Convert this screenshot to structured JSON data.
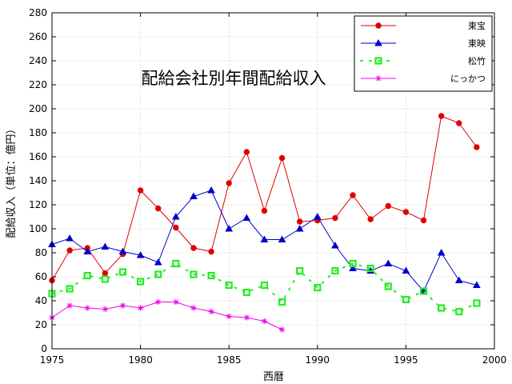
{
  "chart_data": {
    "type": "line",
    "title": "配給会社別年間配給収入",
    "xlabel": "西暦",
    "ylabel": "配給収入（単位：億円）",
    "xlim": [
      1975,
      2000
    ],
    "ylim": [
      0,
      280
    ],
    "xticks": [
      1975,
      1980,
      1985,
      1990,
      1995,
      2000
    ],
    "yticks": [
      0,
      20,
      40,
      60,
      80,
      100,
      120,
      140,
      160,
      180,
      200,
      220,
      240,
      260,
      280
    ],
    "grid": true,
    "legend_position": "top-right",
    "series": [
      {
        "name": "東宝",
        "color": "#e00000",
        "marker": "circle",
        "line": "solid",
        "x": [
          1975,
          1976,
          1977,
          1978,
          1979,
          1980,
          1981,
          1982,
          1983,
          1984,
          1985,
          1986,
          1987,
          1988,
          1989,
          1990,
          1991,
          1992,
          1993,
          1994,
          1995,
          1996,
          1997,
          1998,
          1999
        ],
        "y": [
          57,
          82,
          84,
          63,
          79,
          132,
          117,
          101,
          84,
          81,
          138,
          164,
          115,
          159,
          106,
          107,
          109,
          128,
          108,
          119,
          114,
          107,
          194,
          188,
          168
        ]
      },
      {
        "name": "東映",
        "color": "#0000cc",
        "marker": "triangle",
        "line": "solid",
        "x": [
          1975,
          1976,
          1977,
          1978,
          1979,
          1980,
          1981,
          1982,
          1983,
          1984,
          1985,
          1986,
          1987,
          1988,
          1989,
          1990,
          1991,
          1992,
          1993,
          1994,
          1995,
          1996,
          1997,
          1998,
          1999
        ],
        "y": [
          87,
          92,
          81,
          85,
          81,
          78,
          72,
          110,
          127,
          132,
          100,
          109,
          91,
          91,
          100,
          110,
          86,
          67,
          65,
          71,
          65,
          48,
          80,
          57,
          53
        ]
      },
      {
        "name": "松竹",
        "color": "#22ee22",
        "marker": "square",
        "line": "dotted",
        "x": [
          1975,
          1976,
          1977,
          1978,
          1979,
          1980,
          1981,
          1982,
          1983,
          1984,
          1985,
          1986,
          1987,
          1988,
          1989,
          1990,
          1991,
          1992,
          1993,
          1994,
          1995,
          1996,
          1997,
          1998,
          1999
        ],
        "y": [
          46,
          50,
          61,
          58,
          64,
          56,
          62,
          71,
          62,
          61,
          53,
          47,
          53,
          39,
          65,
          51,
          65,
          71,
          67,
          52,
          41,
          48,
          34,
          31,
          38
        ]
      },
      {
        "name": "にっかつ",
        "color": "#ee00ee",
        "marker": "star",
        "line": "solid",
        "x": [
          1975,
          1976,
          1977,
          1978,
          1979,
          1980,
          1981,
          1982,
          1983,
          1984,
          1985,
          1986,
          1987,
          1988
        ],
        "y": [
          26,
          36,
          34,
          33,
          36,
          34,
          39,
          39,
          34,
          31,
          27,
          26,
          23,
          16
        ]
      }
    ]
  }
}
